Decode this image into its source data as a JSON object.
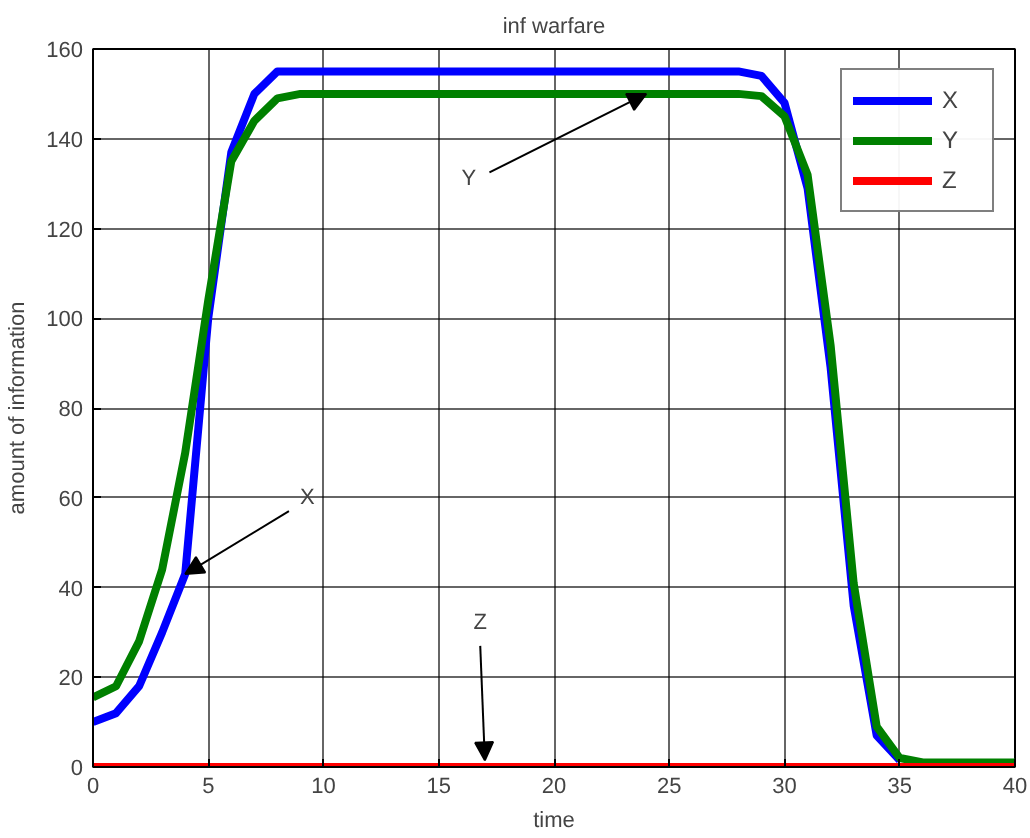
{
  "chart_data": {
    "type": "line",
    "title": "inf warfare",
    "xlabel": "time",
    "ylabel": "amount of information",
    "x": [
      0,
      1,
      2,
      3,
      4,
      5,
      6,
      7,
      8,
      9,
      10,
      15,
      17,
      20,
      24,
      26,
      28,
      29,
      30,
      31,
      32,
      33,
      34,
      35,
      36,
      38,
      40
    ],
    "series": [
      {
        "name": "X",
        "color": "#0000ff",
        "values": [
          10,
          12,
          18,
          30,
          43,
          100,
          137,
          150,
          155,
          155,
          155,
          155,
          155,
          155,
          155,
          155,
          155,
          154,
          148,
          129,
          89,
          36,
          7,
          1.5,
          null,
          null,
          null
        ]
      },
      {
        "name": "Y",
        "color": "#008000",
        "values": [
          15.5,
          18,
          28,
          44,
          70,
          104,
          135,
          144,
          149,
          150,
          150,
          150,
          150,
          150,
          150,
          150,
          150,
          149.5,
          145,
          132,
          94,
          41,
          9,
          2,
          1,
          1,
          1
        ]
      },
      {
        "name": "Z",
        "color": "#ff0000",
        "values": [
          0,
          0,
          0,
          0,
          0,
          0,
          0,
          0,
          0,
          0,
          0,
          0,
          0,
          0,
          0,
          0,
          0,
          0,
          0,
          0,
          0,
          0,
          0,
          0,
          0,
          0,
          0
        ]
      }
    ],
    "annotations": [
      {
        "text": "X",
        "x": 4,
        "y": 43
      },
      {
        "text": "Y",
        "x": 24,
        "y": 150
      },
      {
        "text": "Z",
        "x": 17,
        "y": 0
      }
    ],
    "xlim": [
      0,
      40
    ],
    "ylim": [
      0,
      160
    ],
    "xticks": [
      0,
      5,
      10,
      15,
      20,
      25,
      30,
      35,
      40
    ],
    "yticks": [
      0,
      20,
      40,
      60,
      80,
      100,
      120,
      140,
      160
    ],
    "grid": true,
    "legend": "top right",
    "marker": "none",
    "line_style": "solid"
  }
}
